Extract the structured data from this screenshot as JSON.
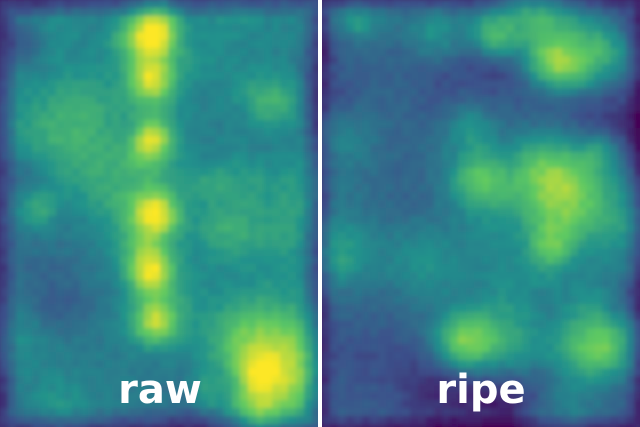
{
  "panels": [
    {
      "label": "raw"
    },
    {
      "label": "ripe"
    }
  ]
}
